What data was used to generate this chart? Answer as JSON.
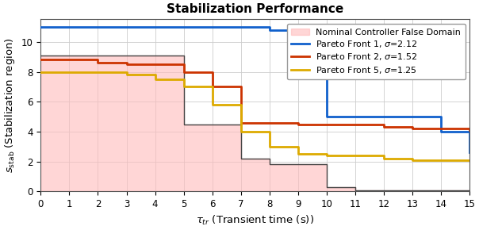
{
  "title": "Stabilization Performance",
  "xlabel": "$\\tau_{tr}$ (Transient time (s))",
  "ylabel": "$s_\\mathrm{stab}$ (Stabilization region)",
  "xlim": [
    0,
    15
  ],
  "ylim": [
    0,
    11.5
  ],
  "xticks": [
    0,
    1,
    2,
    3,
    4,
    5,
    6,
    7,
    8,
    9,
    10,
    11,
    12,
    13,
    14,
    15
  ],
  "yticks": [
    0,
    2,
    4,
    6,
    8,
    10
  ],
  "nominal_x": [
    0,
    1,
    2,
    3,
    4,
    5,
    6,
    7,
    8,
    9,
    10,
    11,
    15
  ],
  "nominal_y": [
    9.1,
    9.1,
    9.1,
    9.1,
    9.1,
    4.5,
    4.5,
    2.2,
    1.8,
    1.8,
    0.3,
    0.1,
    0.1
  ],
  "pareto1_x": [
    0,
    7,
    8,
    10,
    13,
    14,
    15
  ],
  "pareto1_y": [
    11,
    11,
    10.8,
    5.0,
    5.0,
    4.0,
    2.6
  ],
  "pareto2_x": [
    0,
    1,
    2,
    3,
    4,
    5,
    6,
    7,
    8,
    9,
    10,
    12,
    13,
    14,
    15
  ],
  "pareto2_y": [
    8.8,
    8.8,
    8.6,
    8.5,
    8.5,
    8.0,
    7.0,
    4.6,
    4.6,
    4.5,
    4.5,
    4.3,
    4.2,
    4.2,
    4.1
  ],
  "pareto5_x": [
    0,
    1,
    2,
    3,
    4,
    5,
    6,
    7,
    8,
    9,
    10,
    12,
    13,
    14,
    15
  ],
  "pareto5_y": [
    8.0,
    8.0,
    8.0,
    7.8,
    7.5,
    7.0,
    5.8,
    4.0,
    3.0,
    2.5,
    2.4,
    2.2,
    2.1,
    2.1,
    2.1
  ],
  "nominal_fill_color": "#FFBBBB",
  "nominal_fill_alpha": 0.6,
  "nominal_line_color": "#444444",
  "pareto1_color": "#1060CC",
  "pareto2_color": "#CC3300",
  "pareto5_color": "#DDAA00",
  "background_color": "#FFFFFF",
  "legend_labels": [
    "Nominal Controller False Domain",
    "Pareto Front 1, $\\sigma$=2.12",
    "Pareto Front 2, $\\sigma$=1.52",
    "Pareto Front 5, $\\sigma$=1.25"
  ]
}
